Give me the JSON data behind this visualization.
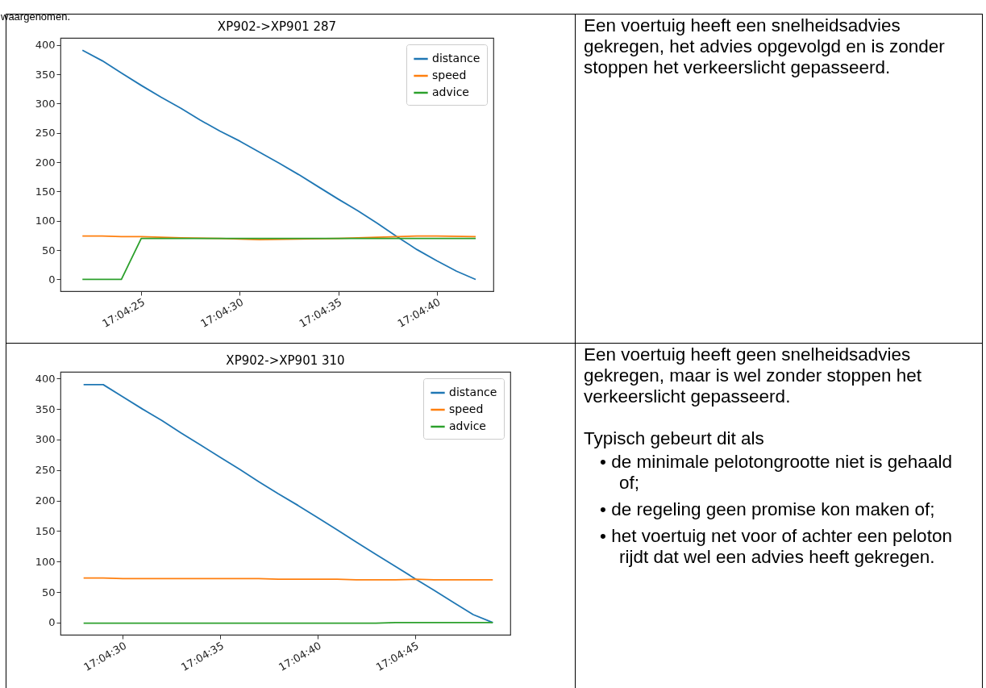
{
  "chart_data": [
    {
      "type": "other",
      "annotations": [
        "waargenomen."
      ]
    },
    {
      "type": "line",
      "title": "XP902->XP901 287",
      "legend": "top right",
      "xlim": [
        17.07247,
        17.07858
      ],
      "ylim": [
        -20,
        412
      ],
      "yticks": [
        0,
        50,
        100,
        150,
        200,
        250,
        300,
        350,
        400
      ],
      "xticks": [
        {
          "value": 17.07361,
          "label": "17:04:25"
        },
        {
          "value": 17.075,
          "label": "17:04:30"
        },
        {
          "value": 17.07639,
          "label": "17:04:35"
        },
        {
          "value": 17.07778,
          "label": "17:04:40"
        }
      ],
      "series": [
        {
          "name": "distance",
          "color": "#1f77b4",
          "x": [
            17.07278,
            17.07306,
            17.07333,
            17.07361,
            17.07389,
            17.07417,
            17.07444,
            17.07472,
            17.075,
            17.07528,
            17.07556,
            17.07583,
            17.07611,
            17.07639,
            17.07667,
            17.07694,
            17.07722,
            17.0775,
            17.07778,
            17.07806,
            17.07833
          ],
          "values": [
            391,
            373,
            352,
            331,
            311,
            292,
            272,
            253,
            236,
            217,
            198,
            179,
            158,
            137,
            117,
            96,
            73,
            51,
            32,
            14,
            0
          ]
        },
        {
          "name": "speed",
          "color": "#ff7f0e",
          "x": [
            17.07278,
            17.07306,
            17.07333,
            17.07361,
            17.07417,
            17.07472,
            17.07528,
            17.07583,
            17.07639,
            17.07694,
            17.0775,
            17.07778,
            17.07833
          ],
          "values": [
            74,
            74,
            73,
            73,
            71,
            70,
            68,
            69,
            70,
            72,
            74,
            74,
            73
          ]
        },
        {
          "name": "advice",
          "color": "#2ca02c",
          "x": [
            17.07278,
            17.07333,
            17.07361,
            17.07833
          ],
          "values": [
            0,
            0,
            70,
            70
          ]
        }
      ]
    },
    {
      "type": "other",
      "annotations": [
        "Een voertuig heeft een snelheidsadvies gekregen, het advies opgevolgd en is zonder stoppen het verkeerslicht gepasseerd."
      ]
    },
    {
      "type": "line",
      "title": "XP902->XP901 310",
      "legend": "top right",
      "xlim": [
        17.07411,
        17.08053
      ],
      "ylim": [
        -20,
        411
      ],
      "yticks": [
        0,
        50,
        100,
        150,
        200,
        250,
        300,
        350,
        400
      ],
      "xticks": [
        {
          "value": 17.075,
          "label": "17:04:30"
        },
        {
          "value": 17.07639,
          "label": "17:04:35"
        },
        {
          "value": 17.07778,
          "label": "17:04:40"
        },
        {
          "value": 17.07917,
          "label": "17:04:45"
        }
      ],
      "series": [
        {
          "name": "distance",
          "color": "#1f77b4",
          "x": [
            17.07444,
            17.07472,
            17.075,
            17.07528,
            17.07556,
            17.07583,
            17.07611,
            17.07639,
            17.07667,
            17.07694,
            17.07722,
            17.0775,
            17.07778,
            17.07806,
            17.07833,
            17.07861,
            17.07889,
            17.07917,
            17.07944,
            17.07972,
            17.08,
            17.08028
          ],
          "values": [
            390,
            390,
            370,
            350,
            331,
            311,
            291,
            271,
            251,
            231,
            211,
            192,
            172,
            152,
            132,
            112,
            92,
            72,
            53,
            33,
            13,
            0
          ]
        },
        {
          "name": "speed",
          "color": "#ff7f0e",
          "x": [
            17.07444,
            17.07472,
            17.075,
            17.07694,
            17.07722,
            17.07806,
            17.07833,
            17.07889,
            17.07917,
            17.07944,
            17.08028
          ],
          "values": [
            73,
            73,
            72,
            72,
            71,
            71,
            70,
            70,
            71,
            70,
            70
          ]
        },
        {
          "name": "advice",
          "color": "#2ca02c",
          "x": [
            17.07444,
            17.07861,
            17.07889,
            17.08028
          ],
          "values": [
            -1,
            -1,
            0,
            0
          ]
        }
      ]
    },
    {
      "type": "other",
      "annotations": [
        "Een voertuig heeft geen snelheidsadvies gekregen, maar is wel zonder stoppen het verkeerslicht gepasseerd.",
        "Typisch gebeurt dit als",
        "• de minimale pelotongrootte niet is gehaald of;",
        "• de regeling geen promise kon maken of;",
        "• het voertuig net voor of achter een peloton rijdt dat wel een advies heeft gekregen."
      ]
    }
  ]
}
